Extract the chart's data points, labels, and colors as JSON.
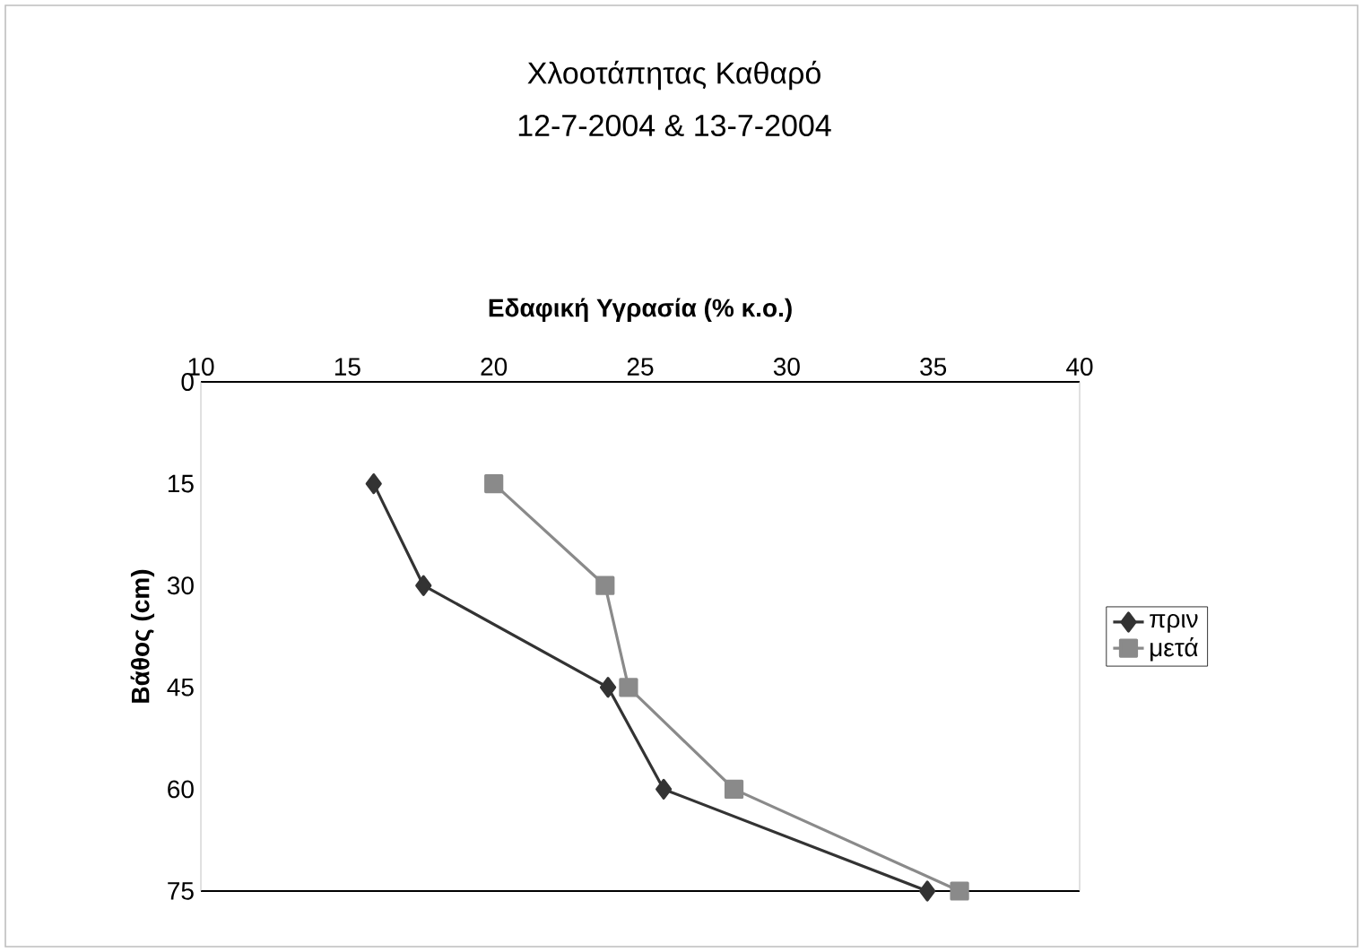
{
  "chart_data": {
    "type": "line",
    "title": "Χλοοτάπητας Καθαρό",
    "subtitle": "12-7-2004 & 13-7-2004",
    "xlabel": "Εδαφική Υγρασία (% κ.ο.)",
    "ylabel": "Βάθος (cm)",
    "xlim": [
      10,
      40
    ],
    "xticks": [
      10,
      15,
      20,
      25,
      30,
      35,
      40
    ],
    "ylim": [
      75,
      0
    ],
    "yticks": [
      0,
      15,
      30,
      45,
      60,
      75
    ],
    "grid": false,
    "legend": "right",
    "series": [
      {
        "name": "πριν",
        "color": "#333333",
        "marker": "diamond",
        "x": [
          15.9,
          17.6,
          23.9,
          25.8,
          34.8
        ],
        "values": [
          15,
          30,
          45,
          60,
          75
        ]
      },
      {
        "name": "μετά",
        "color": "#8a8a8a",
        "marker": "square",
        "x": [
          20.0,
          23.8,
          24.6,
          28.2,
          35.9
        ],
        "values": [
          15,
          30,
          45,
          60,
          75
        ]
      }
    ]
  }
}
